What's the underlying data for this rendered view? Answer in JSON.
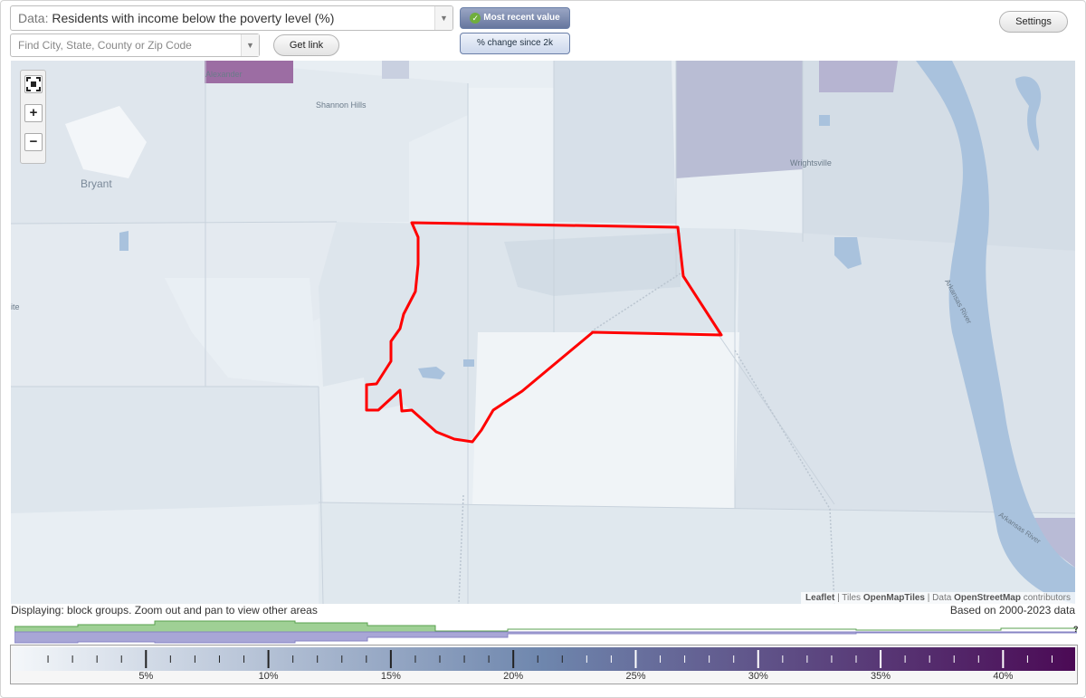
{
  "header": {
    "data_prefix": "Data:",
    "data_value": "Residents with income below the poverty level (%)",
    "search_placeholder": "Find City, State, County or Zip Code",
    "get_link_label": "Get link",
    "settings_label": "Settings",
    "tab_recent_label": "Most recent value",
    "tab_change_label": "% change since 2k"
  },
  "map": {
    "labels": {
      "alexander": "Alexander",
      "shannon_hills": "Shannon Hills",
      "bryant": "Bryant",
      "wrightsville": "Wrightsville",
      "ite": "ite",
      "river_a": "Arkansas River",
      "river_b": "Arkansas River"
    },
    "highlight_color": "#ff0000",
    "zoom": {
      "extent_icon": "fullscreen-extent-icon",
      "in_label": "+",
      "out_label": "−"
    },
    "attribution": {
      "leaflet": "Leaflet",
      "sep1": "|",
      "tiles_prefix": "Tiles",
      "tiles_source": "OpenMapTiles",
      "sep2": "|",
      "data_prefix": "Data",
      "data_source": "OpenStreetMap",
      "data_suffix": "contributors"
    }
  },
  "footer": {
    "display_note": "Displaying: block groups. Zoom out and pan to view other areas",
    "data_range": "Based on 2000-2023 data",
    "histogram_help": "?"
  },
  "legend": {
    "min_pct": 0,
    "max_pct": 42.5,
    "color_low": "#f4f7fa",
    "color_mid": "#6e86ad",
    "color_high": "#4b0a55",
    "tick_labels": [
      {
        "pct": 5,
        "label": "5%"
      },
      {
        "pct": 10,
        "label": "10%"
      },
      {
        "pct": 15,
        "label": "15%"
      },
      {
        "pct": 20,
        "label": "20%"
      },
      {
        "pct": 25,
        "label": "25%"
      },
      {
        "pct": 30,
        "label": "30%"
      },
      {
        "pct": 35,
        "label": "35%"
      },
      {
        "pct": 40,
        "label": "40%"
      }
    ]
  }
}
